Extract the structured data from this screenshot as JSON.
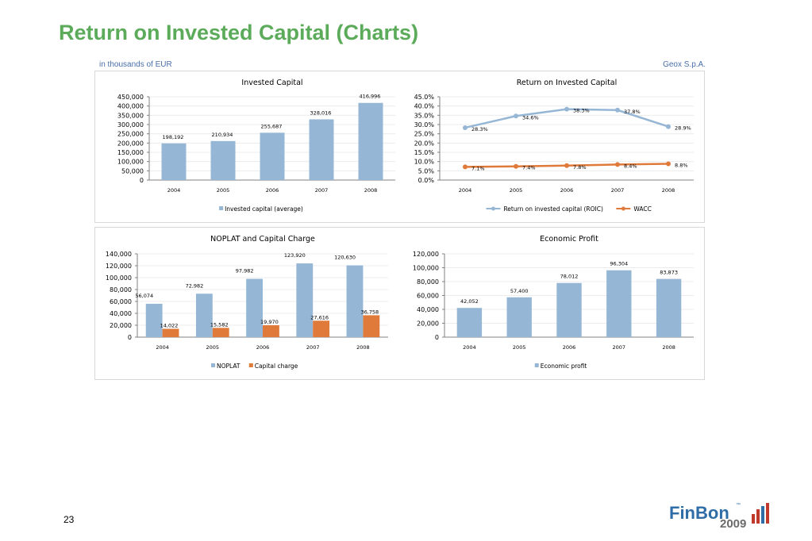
{
  "page": {
    "title": "Return on Invested Capital (Charts)",
    "units": "in thousands of EUR",
    "company": "Geox S.p.A.",
    "page_number": "23",
    "logo_text": "FinBon",
    "logo_tm": "™",
    "logo_year": "2009"
  },
  "colors": {
    "blue": "#95b7d5",
    "orange": "#e07a3b",
    "title_green": "#5bab5b"
  },
  "chart_data": [
    {
      "id": "invested",
      "type": "bar",
      "title": "Invested Capital",
      "categories": [
        "2004",
        "2005",
        "2006",
        "2007",
        "2008"
      ],
      "series": [
        {
          "name": "Invested capital (average)",
          "values": [
            198192,
            210934,
            255687,
            328016,
            416996
          ],
          "labels": [
            "198,192",
            "210,934",
            "255,687",
            "328,016",
            "416,996"
          ],
          "color": "#95b7d5"
        }
      ],
      "ylim": [
        0,
        450000
      ],
      "yticks": [
        "0",
        "50,000",
        "100,000",
        "150,000",
        "200,000",
        "250,000",
        "300,000",
        "350,000",
        "400,000",
        "450,000"
      ],
      "legend": "bottom"
    },
    {
      "id": "roic",
      "type": "line",
      "title": "Return on Invested Capital",
      "categories": [
        "2004",
        "2005",
        "2006",
        "2007",
        "2008"
      ],
      "series": [
        {
          "name": "Return on invested capital (ROIC)",
          "values": [
            28.3,
            34.6,
            38.3,
            37.8,
            28.9
          ],
          "labels": [
            "28.3%",
            "34.6%",
            "38.3%",
            "37.8%",
            "28.9%"
          ],
          "color": "#95b7d5"
        },
        {
          "name": "WACC",
          "values": [
            7.1,
            7.4,
            7.8,
            8.4,
            8.8
          ],
          "labels": [
            "7.1%",
            "7.4%",
            "7.8%",
            "8.4%",
            "8.8%"
          ],
          "color": "#e07a3b"
        }
      ],
      "ylim": [
        0,
        45
      ],
      "yticks": [
        "0.0%",
        "5.0%",
        "10.0%",
        "15.0%",
        "20.0%",
        "25.0%",
        "30.0%",
        "35.0%",
        "40.0%",
        "45.0%"
      ],
      "legend": "bottom"
    },
    {
      "id": "noplat",
      "type": "bar",
      "title": "NOPLAT and Capital Charge",
      "categories": [
        "2004",
        "2005",
        "2006",
        "2007",
        "2008"
      ],
      "series": [
        {
          "name": "NOPLAT",
          "values": [
            56074,
            72982,
            97982,
            123920,
            120630
          ],
          "labels": [
            "56,074",
            "72,982",
            "97,982",
            "123,920",
            "120,630"
          ],
          "color": "#95b7d5"
        },
        {
          "name": "Capital charge",
          "values": [
            14022,
            15582,
            19970,
            27616,
            36758
          ],
          "labels": [
            "14,022",
            "15,582",
            "19,970",
            "27,616",
            "36,758"
          ],
          "color": "#e07a3b"
        }
      ],
      "ylim": [
        0,
        140000
      ],
      "yticks": [
        "0",
        "20,000",
        "40,000",
        "60,000",
        "80,000",
        "100,000",
        "120,000",
        "140,000"
      ],
      "legend": "bottom"
    },
    {
      "id": "econ",
      "type": "bar",
      "title": "Economic Profit",
      "categories": [
        "2004",
        "2005",
        "2006",
        "2007",
        "2008"
      ],
      "series": [
        {
          "name": "Economic profit",
          "values": [
            42052,
            57400,
            78012,
            96304,
            83873
          ],
          "labels": [
            "42,052",
            "57,400",
            "78,012",
            "96,304",
            "83,873"
          ],
          "color": "#95b7d5"
        }
      ],
      "ylim": [
        0,
        120000
      ],
      "yticks": [
        "0",
        "20,000",
        "40,000",
        "60,000",
        "80,000",
        "100,000",
        "120,000"
      ],
      "legend": "bottom"
    }
  ]
}
